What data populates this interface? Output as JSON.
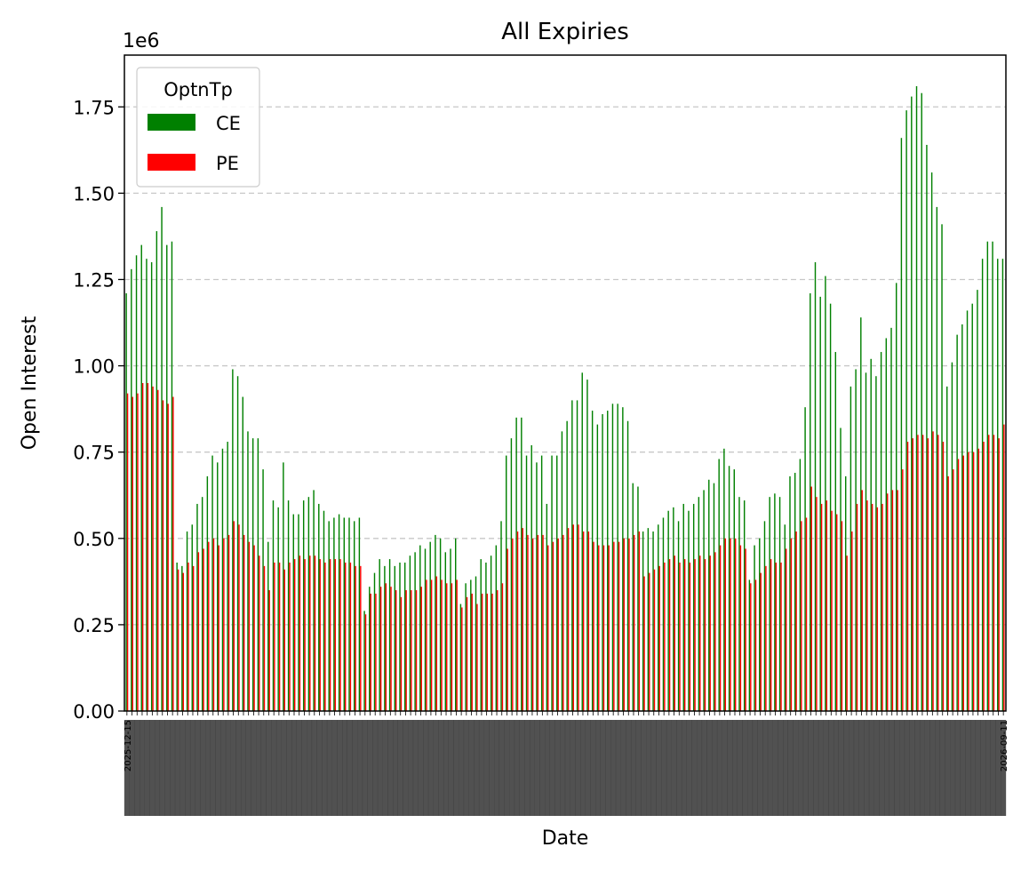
{
  "chart_data": {
    "type": "bar",
    "title": "All Expiries",
    "xlabel": "Date",
    "ylabel": "Open Interest",
    "offset_text": "1e6",
    "ylim": [
      0,
      1.9
    ],
    "yticks": [
      0,
      0.25,
      0.5,
      0.75,
      1.0,
      1.25,
      1.5,
      1.75
    ],
    "ytick_labels": [
      "0.00",
      "0.25",
      "0.50",
      "0.75",
      "1.00",
      "1.25",
      "1.50",
      "1.75"
    ],
    "grid": "y-dashed",
    "legend": {
      "title": "OptnTp",
      "placement": "top-left"
    },
    "x_start_label": "2025-12-15",
    "x_end_label": "2026-09-11",
    "series": [
      {
        "name": "CE",
        "color": "#008000",
        "values": [
          1.21,
          1.28,
          1.32,
          1.35,
          1.31,
          1.3,
          1.39,
          1.46,
          1.35,
          1.36,
          0.43,
          0.42,
          0.52,
          0.54,
          0.6,
          0.62,
          0.68,
          0.74,
          0.72,
          0.76,
          0.78,
          0.99,
          0.97,
          0.91,
          0.81,
          0.79,
          0.79,
          0.7,
          0.49,
          0.61,
          0.59,
          0.72,
          0.61,
          0.57,
          0.57,
          0.61,
          0.62,
          0.64,
          0.6,
          0.58,
          0.55,
          0.56,
          0.57,
          0.56,
          0.56,
          0.55,
          0.56,
          0.29,
          0.36,
          0.4,
          0.44,
          0.42,
          0.44,
          0.42,
          0.43,
          0.43,
          0.45,
          0.46,
          0.48,
          0.47,
          0.49,
          0.51,
          0.5,
          0.46,
          0.47,
          0.5,
          0.31,
          0.37,
          0.38,
          0.39,
          0.44,
          0.43,
          0.45,
          0.48,
          0.55,
          0.74,
          0.79,
          0.85,
          0.85,
          0.74,
          0.77,
          0.72,
          0.74,
          0.6,
          0.74,
          0.74,
          0.81,
          0.84,
          0.9,
          0.9,
          0.98,
          0.96,
          0.87,
          0.83,
          0.86,
          0.87,
          0.89,
          0.89,
          0.88,
          0.84,
          0.66,
          0.65,
          0.52,
          0.53,
          0.52,
          0.54,
          0.56,
          0.58,
          0.59,
          0.55,
          0.6,
          0.58,
          0.6,
          0.62,
          0.64,
          0.67,
          0.66,
          0.73,
          0.76,
          0.71,
          0.7,
          0.62,
          0.61,
          0.38,
          0.48,
          0.5,
          0.55,
          0.62,
          0.63,
          0.62,
          0.54,
          0.68,
          0.69,
          0.73,
          0.88,
          1.21,
          1.3,
          1.2,
          1.26,
          1.18,
          1.04,
          0.82,
          0.68,
          0.94,
          0.99,
          1.14,
          0.98,
          1.02,
          0.97,
          1.04,
          1.08,
          1.11,
          1.24,
          1.66,
          1.74,
          1.78,
          1.81,
          1.79,
          1.64,
          1.56,
          1.46,
          1.41,
          0.94,
          1.01,
          1.09,
          1.12,
          1.16,
          1.18,
          1.22,
          1.31,
          1.36,
          1.36,
          1.31,
          1.31
        ]
      },
      {
        "name": "PE",
        "color": "#ff0000",
        "values": [
          0.92,
          0.91,
          0.92,
          0.95,
          0.95,
          0.94,
          0.93,
          0.9,
          0.89,
          0.91,
          0.41,
          0.4,
          0.43,
          0.42,
          0.46,
          0.47,
          0.49,
          0.5,
          0.48,
          0.5,
          0.51,
          0.55,
          0.54,
          0.51,
          0.49,
          0.48,
          0.45,
          0.42,
          0.35,
          0.43,
          0.43,
          0.41,
          0.43,
          0.44,
          0.45,
          0.44,
          0.45,
          0.45,
          0.44,
          0.43,
          0.44,
          0.44,
          0.44,
          0.43,
          0.43,
          0.42,
          0.42,
          0.28,
          0.34,
          0.34,
          0.36,
          0.37,
          0.36,
          0.35,
          0.33,
          0.35,
          0.35,
          0.35,
          0.36,
          0.38,
          0.38,
          0.39,
          0.38,
          0.37,
          0.37,
          0.38,
          0.3,
          0.33,
          0.34,
          0.31,
          0.34,
          0.34,
          0.34,
          0.35,
          0.37,
          0.47,
          0.5,
          0.52,
          0.53,
          0.51,
          0.5,
          0.51,
          0.51,
          0.48,
          0.49,
          0.5,
          0.51,
          0.53,
          0.54,
          0.54,
          0.52,
          0.52,
          0.49,
          0.48,
          0.48,
          0.48,
          0.49,
          0.49,
          0.5,
          0.5,
          0.51,
          0.52,
          0.39,
          0.4,
          0.41,
          0.42,
          0.43,
          0.44,
          0.45,
          0.43,
          0.44,
          0.43,
          0.44,
          0.45,
          0.44,
          0.45,
          0.46,
          0.48,
          0.5,
          0.5,
          0.5,
          0.48,
          0.47,
          0.37,
          0.38,
          0.4,
          0.42,
          0.44,
          0.43,
          0.43,
          0.47,
          0.5,
          0.52,
          0.55,
          0.56,
          0.65,
          0.62,
          0.6,
          0.61,
          0.58,
          0.57,
          0.55,
          0.45,
          0.52,
          0.6,
          0.64,
          0.61,
          0.6,
          0.59,
          0.6,
          0.63,
          0.64,
          0.64,
          0.7,
          0.78,
          0.79,
          0.8,
          0.8,
          0.79,
          0.81,
          0.8,
          0.78,
          0.68,
          0.7,
          0.73,
          0.74,
          0.75,
          0.75,
          0.76,
          0.78,
          0.8,
          0.8,
          0.79,
          0.83
        ]
      }
    ]
  }
}
